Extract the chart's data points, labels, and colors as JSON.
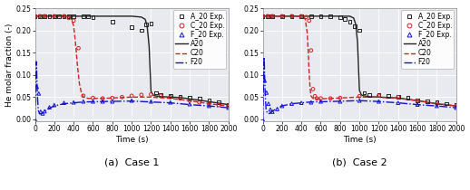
{
  "title_a": "(a)  Case 1",
  "title_b": "(b)  Case 2",
  "xlabel": "Time (s)",
  "ylabel": "He molar fraction (-)",
  "xlim": [
    0,
    2000
  ],
  "ylim": [
    -0.005,
    0.25
  ],
  "yticks": [
    0.0,
    0.05,
    0.1,
    0.15,
    0.2,
    0.25
  ],
  "xticks": [
    0,
    200,
    400,
    600,
    800,
    1000,
    1200,
    1400,
    1600,
    1800,
    2000
  ],
  "A20_exp_1": {
    "x": [
      0,
      50,
      100,
      150,
      200,
      250,
      300,
      350,
      400,
      500,
      550,
      600,
      800,
      1000,
      1100,
      1150,
      1200,
      1250,
      1300,
      1400,
      1500,
      1600,
      1700,
      1800,
      1900,
      2000
    ],
    "y": [
      0.232,
      0.232,
      0.232,
      0.232,
      0.232,
      0.232,
      0.232,
      0.232,
      0.232,
      0.232,
      0.232,
      0.23,
      0.22,
      0.208,
      0.2,
      0.213,
      0.215,
      0.06,
      0.055,
      0.052,
      0.05,
      0.048,
      0.047,
      0.042,
      0.038,
      0.033
    ]
  },
  "C20_exp_1": {
    "x": [
      0,
      50,
      100,
      200,
      300,
      350,
      400,
      450,
      500,
      600,
      700,
      800,
      900,
      1000,
      1100,
      1200,
      1300,
      1400,
      1500,
      1600,
      1700,
      1800,
      1900,
      2000
    ],
    "y": [
      0.232,
      0.232,
      0.232,
      0.232,
      0.232,
      0.228,
      0.222,
      0.16,
      0.053,
      0.048,
      0.047,
      0.048,
      0.05,
      0.053,
      0.055,
      0.056,
      0.053,
      0.05,
      0.047,
      0.042,
      0.038,
      0.035,
      0.032,
      0.03
    ]
  },
  "F20_exp_1": {
    "x": [
      0,
      20,
      40,
      60,
      80,
      100,
      150,
      200,
      300,
      400,
      500,
      600,
      700,
      800,
      1000,
      1200,
      1400,
      1600,
      1800,
      2000
    ],
    "y": [
      0.0,
      0.073,
      0.058,
      0.017,
      0.013,
      0.018,
      0.027,
      0.032,
      0.037,
      0.038,
      0.04,
      0.04,
      0.04,
      0.04,
      0.042,
      0.04,
      0.038,
      0.034,
      0.03,
      0.026
    ]
  },
  "A20_line_1": {
    "x": [
      0,
      100,
      200,
      400,
      600,
      800,
      1000,
      1100,
      1140,
      1160,
      1180,
      1200,
      1220,
      1240,
      1300,
      1500,
      1700,
      2000
    ],
    "y": [
      0.232,
      0.232,
      0.232,
      0.232,
      0.232,
      0.232,
      0.232,
      0.23,
      0.225,
      0.21,
      0.165,
      0.063,
      0.055,
      0.053,
      0.051,
      0.049,
      0.043,
      0.033
    ]
  },
  "C20_line_1": {
    "x": [
      0,
      100,
      200,
      300,
      350,
      380,
      400,
      420,
      440,
      460,
      480,
      500,
      550,
      600,
      700,
      800,
      1000,
      1200,
      1400,
      1600,
      1800,
      2000
    ],
    "y": [
      0.232,
      0.232,
      0.232,
      0.232,
      0.23,
      0.225,
      0.21,
      0.17,
      0.12,
      0.08,
      0.06,
      0.05,
      0.047,
      0.047,
      0.047,
      0.048,
      0.05,
      0.05,
      0.047,
      0.042,
      0.035,
      0.03
    ]
  },
  "F20_line_1": {
    "x": [
      0,
      15,
      25,
      35,
      50,
      70,
      100,
      150,
      200,
      300,
      500,
      700,
      1000,
      1200,
      1400,
      1600,
      1800,
      2000
    ],
    "y": [
      0.0,
      0.13,
      0.055,
      0.02,
      0.012,
      0.013,
      0.018,
      0.025,
      0.03,
      0.035,
      0.039,
      0.04,
      0.041,
      0.039,
      0.037,
      0.033,
      0.03,
      0.026
    ]
  },
  "A20_exp_2": {
    "x": [
      0,
      50,
      100,
      200,
      300,
      400,
      500,
      600,
      700,
      800,
      850,
      900,
      950,
      1000,
      1050,
      1100,
      1200,
      1300,
      1400,
      1500,
      1600,
      1700,
      1800,
      1900,
      2000
    ],
    "y": [
      0.232,
      0.232,
      0.232,
      0.232,
      0.232,
      0.232,
      0.232,
      0.232,
      0.232,
      0.23,
      0.225,
      0.22,
      0.21,
      0.2,
      0.06,
      0.055,
      0.055,
      0.052,
      0.05,
      0.048,
      0.043,
      0.04,
      0.038,
      0.035,
      0.033
    ]
  },
  "C20_exp_2": {
    "x": [
      0,
      50,
      100,
      200,
      300,
      400,
      450,
      480,
      500,
      520,
      540,
      560,
      600,
      700,
      800,
      1000,
      1200,
      1400,
      1600,
      1800,
      2000
    ],
    "y": [
      0.232,
      0.232,
      0.232,
      0.232,
      0.232,
      0.232,
      0.23,
      0.222,
      0.155,
      0.068,
      0.052,
      0.047,
      0.047,
      0.047,
      0.048,
      0.052,
      0.053,
      0.05,
      0.042,
      0.035,
      0.03
    ]
  },
  "F20_exp_2": {
    "x": [
      0,
      20,
      40,
      60,
      80,
      100,
      150,
      200,
      300,
      400,
      500,
      600,
      800,
      1000,
      1200,
      1400,
      1600,
      1800,
      2000
    ],
    "y": [
      0.0,
      0.087,
      0.06,
      0.035,
      0.022,
      0.017,
      0.023,
      0.03,
      0.035,
      0.037,
      0.038,
      0.04,
      0.04,
      0.042,
      0.04,
      0.037,
      0.033,
      0.03,
      0.026
    ]
  },
  "A20_line_2": {
    "x": [
      0,
      100,
      200,
      400,
      600,
      800,
      900,
      940,
      960,
      980,
      1000,
      1020,
      1040,
      1100,
      1200,
      1400,
      1600,
      1800,
      2000
    ],
    "y": [
      0.232,
      0.232,
      0.232,
      0.232,
      0.232,
      0.232,
      0.232,
      0.228,
      0.215,
      0.175,
      0.065,
      0.055,
      0.053,
      0.051,
      0.05,
      0.048,
      0.042,
      0.035,
      0.03
    ]
  },
  "C20_line_2": {
    "x": [
      0,
      100,
      200,
      300,
      380,
      420,
      440,
      460,
      470,
      480,
      490,
      500,
      520,
      560,
      600,
      700,
      800,
      1000,
      1200,
      1400,
      1600,
      1800,
      2000
    ],
    "y": [
      0.232,
      0.232,
      0.232,
      0.232,
      0.232,
      0.23,
      0.225,
      0.195,
      0.155,
      0.105,
      0.07,
      0.052,
      0.047,
      0.046,
      0.046,
      0.047,
      0.048,
      0.05,
      0.05,
      0.047,
      0.042,
      0.035,
      0.03
    ]
  },
  "F20_line_2": {
    "x": [
      0,
      15,
      25,
      35,
      50,
      70,
      100,
      150,
      200,
      300,
      500,
      700,
      1000,
      1200,
      1400,
      1600,
      1800,
      2000
    ],
    "y": [
      0.0,
      0.14,
      0.06,
      0.022,
      0.013,
      0.013,
      0.018,
      0.025,
      0.03,
      0.035,
      0.039,
      0.04,
      0.042,
      0.04,
      0.037,
      0.033,
      0.03,
      0.026
    ]
  },
  "color_A": "#222222",
  "color_C": "#cc2222",
  "color_F": "#1111cc",
  "bg_color": "#e8eaf0",
  "legend_fontsize": 5.5,
  "axis_fontsize": 6.5,
  "tick_fontsize": 5.5,
  "title_fontsize": 8
}
